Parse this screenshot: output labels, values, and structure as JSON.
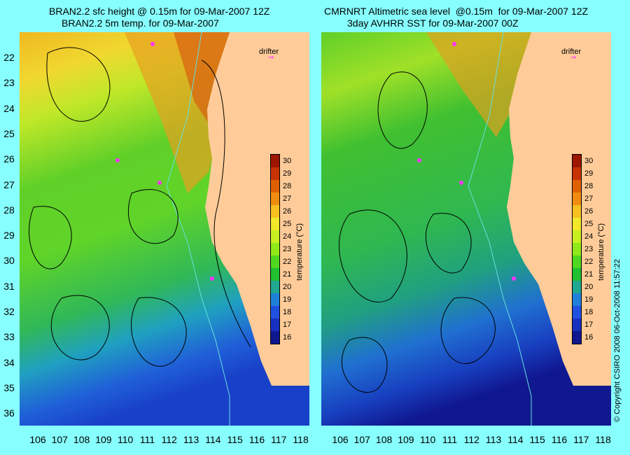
{
  "left_panel": {
    "title_line1": "BRAN2.2 sfc height @ 0.15m for 09-Mar-2007 12Z",
    "title_line2": "BRAN2.2 5m temp. for 09-Mar-2007"
  },
  "right_panel": {
    "title_line1": "CMRNRT Altimetric sea level  @0.15m  for 09-Mar-2007 12Z",
    "title_line2": "3day AVHRR SST for 09-Mar-2007 00Z"
  },
  "drifter_label": "drifter",
  "latitudes": [
    "22",
    "23",
    "24",
    "25",
    "26",
    "27",
    "28",
    "29",
    "30",
    "31",
    "32",
    "33",
    "34",
    "35",
    "36"
  ],
  "longitudes": [
    "106",
    "107",
    "108",
    "109",
    "110",
    "111",
    "112",
    "113",
    "114",
    "115",
    "116",
    "117",
    "118"
  ],
  "colorbar": {
    "title": "temperature (°C)",
    "ticks": [
      "30",
      "29",
      "28",
      "27",
      "26",
      "25",
      "24",
      "23",
      "22",
      "21",
      "20",
      "19",
      "18",
      "17",
      "16"
    ],
    "colors": [
      "#9c1600",
      "#c83200",
      "#e06000",
      "#f08c10",
      "#f8c020",
      "#f0e828",
      "#c8f020",
      "#90e818",
      "#50d820",
      "#20c030",
      "#20a890",
      "#2080d8",
      "#2050e0",
      "#1830c0",
      "#101890"
    ]
  },
  "colors": {
    "background": "#88ffff",
    "land": "#ffcc99",
    "drifter_track": "#ff33ff",
    "contour": "#000000",
    "bathymetry": "#66e0e0"
  },
  "copyright": "© Copyright CSIRO 2008     06-Oct-2008 11:57:22"
}
